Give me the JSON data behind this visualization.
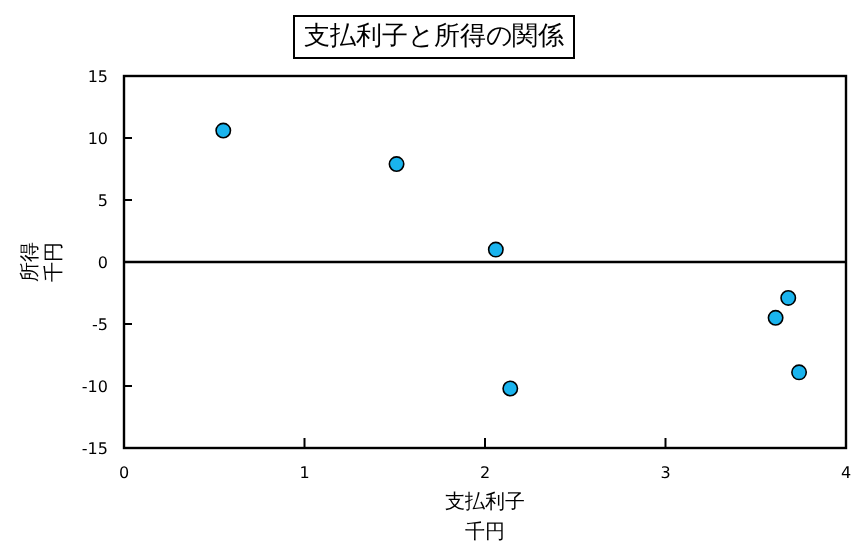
{
  "chart_data": {
    "type": "scatter",
    "title": "支払利子と所得の関係",
    "xlabel": "支払利子",
    "ylabel": "所得",
    "annotations": [
      "千円",
      "千円"
    ],
    "x": [
      0.55,
      1.51,
      2.06,
      2.14,
      3.61,
      3.68,
      3.74
    ],
    "series": [
      {
        "color": "#1ab4ee",
        "values": [
          10.6,
          7.9,
          1.0,
          -10.2,
          -4.5,
          -2.9,
          -8.9
        ]
      }
    ],
    "xlim": [
      0,
      4
    ],
    "ylim": [
      -15,
      15
    ],
    "xticks": [
      0,
      1,
      2,
      3,
      4
    ],
    "yticks": [
      -15,
      -10,
      -5,
      0,
      5,
      10,
      15
    ],
    "ref_lines": [
      {
        "axis": "y",
        "value": 0,
        "color": "#000000"
      }
    ],
    "marker": "circle",
    "grid": false
  }
}
